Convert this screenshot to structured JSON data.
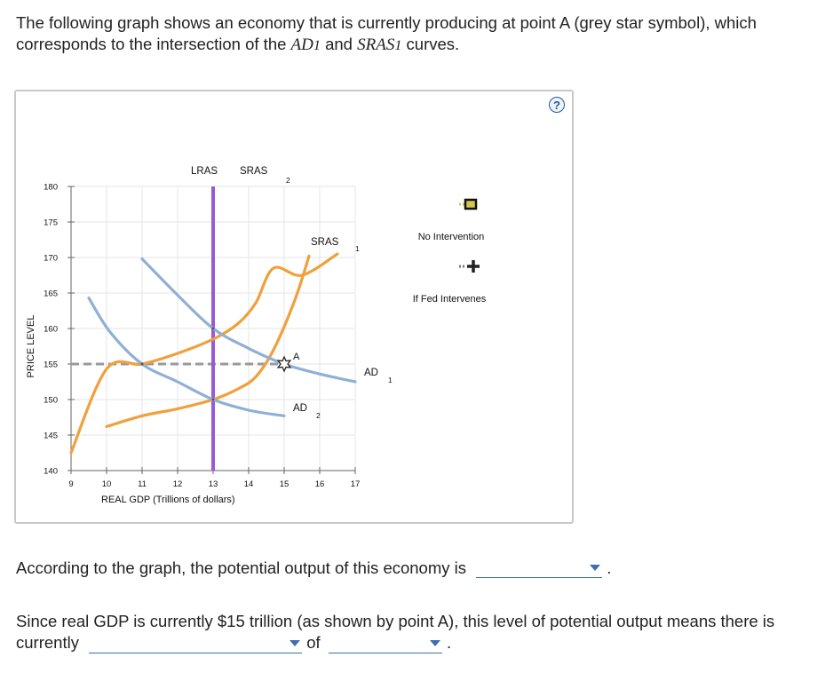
{
  "intro": {
    "part1": "The following graph shows an economy that is currently producing at point A (grey star symbol), which corresponds to the intersection of the ",
    "ad1": "AD1",
    "and": " and ",
    "sras1": "SRAS1",
    "end": " curves."
  },
  "help_label": "?",
  "chart_data": {
    "type": "line",
    "xlabel": "REAL GDP (Trillions of dollars)",
    "ylabel": "PRICE LEVEL",
    "xlim": [
      9,
      17
    ],
    "ylim": [
      140,
      180
    ],
    "x_ticks": [
      9,
      10,
      11,
      12,
      13,
      14,
      15,
      16,
      17
    ],
    "y_ticks": [
      180,
      175,
      170,
      165,
      160,
      155,
      150,
      145,
      140
    ],
    "grid": true,
    "series": [
      {
        "name": "LRAS",
        "color": "#9b59d6",
        "kind": "vertical",
        "x": 13
      },
      {
        "name": "SRAS2",
        "color": "#f0a03c",
        "points": [
          [
            10,
            146.2
          ],
          [
            11,
            147.7
          ],
          [
            12,
            148.7
          ],
          [
            13,
            150
          ],
          [
            13.7,
            151.5
          ],
          [
            14.2,
            153.2
          ],
          [
            14.7,
            157
          ],
          [
            15.3,
            164
          ],
          [
            15.7,
            170.2
          ]
        ],
        "label": "SRAS",
        "sub": "2"
      },
      {
        "name": "SRAS1",
        "color": "#f0a03c",
        "points": [
          [
            9,
            142.5
          ],
          [
            10,
            154.3
          ],
          [
            11,
            155
          ],
          [
            12,
            156.5
          ],
          [
            13,
            158.5
          ],
          [
            13.7,
            160.7
          ],
          [
            14.2,
            163.6
          ],
          [
            14.7,
            168.5
          ],
          [
            15.5,
            167.5
          ],
          [
            16.5,
            170.5
          ]
        ],
        "label": "SRAS",
        "sub": "1"
      },
      {
        "name": "AD1",
        "color": "#8fb0d6",
        "points": [
          [
            11,
            169.8
          ],
          [
            12,
            164.7
          ],
          [
            13,
            160
          ],
          [
            14,
            157.2
          ],
          [
            15,
            155
          ],
          [
            16,
            153.6
          ],
          [
            17,
            152.5
          ]
        ],
        "label": "AD",
        "sub": "1"
      },
      {
        "name": "AD2",
        "color": "#8fb0d6",
        "points": [
          [
            9.5,
            164.3
          ],
          [
            10.1,
            159.5
          ],
          [
            11,
            155
          ],
          [
            12,
            152.5
          ],
          [
            13,
            150
          ],
          [
            14,
            148.5
          ],
          [
            15,
            147.7
          ]
        ],
        "label": "AD",
        "sub": "2"
      }
    ],
    "reference_line": {
      "y": 155,
      "x_from": 9,
      "x_to": 15,
      "style": "dashed",
      "color": "#999999"
    },
    "intersections": [
      {
        "label": "",
        "x": 11,
        "y": 155
      },
      {
        "label": "",
        "x": 13,
        "y": 160
      },
      {
        "label": "",
        "x": 13,
        "y": 150
      }
    ],
    "point_A": {
      "label": "A",
      "x": 15,
      "y": 155
    },
    "legend": [
      {
        "label": "No Intervention",
        "marker": "square",
        "color": "#d4c84a"
      },
      {
        "label": "If Fed Intervenes",
        "marker": "plus",
        "color": "#222222"
      }
    ]
  },
  "question1": {
    "text": "According to the graph, the potential output of this economy is",
    "end": "."
  },
  "question2": {
    "text": "Since real GDP is currently $15 trillion (as shown by point A), this level of potential output means there is currently",
    "of": "of",
    "end": "."
  }
}
